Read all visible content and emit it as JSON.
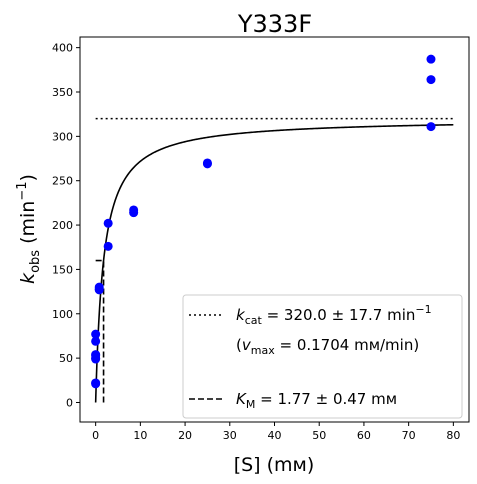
{
  "chart_data": {
    "type": "scatter",
    "title": "Y333F",
    "xlabel": "[S] (mм)",
    "ylabel_parts": {
      "main": "k",
      "sub": "obs",
      "unit_open": " (min",
      "sup": "−1",
      "unit_close": ")"
    },
    "xlim": [
      -3.5,
      83.5
    ],
    "ylim": [
      -22,
      412
    ],
    "xticks": [
      0,
      10,
      20,
      30,
      40,
      50,
      60,
      70,
      80
    ],
    "yticks": [
      0,
      50,
      100,
      150,
      200,
      250,
      300,
      350,
      400
    ],
    "grid": false,
    "legend_position": "lower-right",
    "colors": {
      "points": "#0000ff",
      "lines": "#000000"
    },
    "points": {
      "x": [
        0,
        0,
        0,
        0,
        0,
        0,
        0,
        0,
        0.8,
        0.8,
        0.8,
        2.8,
        2.8,
        8.5,
        8.5,
        25,
        25,
        75,
        75,
        75
      ],
      "y": [
        21,
        22,
        49,
        50,
        53,
        54,
        69,
        77,
        127,
        128,
        130,
        176,
        202,
        214,
        217,
        269,
        270,
        311,
        364,
        387
      ]
    },
    "fit_curve": {
      "kcat": 320.0,
      "km": 1.77,
      "x_range": [
        0,
        80
      ]
    },
    "kcat_line": {
      "y": 320.0,
      "x_range": [
        0,
        80
      ]
    },
    "km_lines": {
      "x": 1.77,
      "y_half": 160,
      "x_start": 0
    },
    "legend": {
      "kcat": {
        "symbol": "k",
        "sub": "cat",
        "rest": " = 320.0 ± 17.7 min",
        "sup": "−1"
      },
      "vmax": {
        "open": "(",
        "symbol": "v",
        "sub": "max",
        "rest": " = 0.1704 mм/min)"
      },
      "km": {
        "symbol": "K",
        "sub": "M",
        "rest": " = 1.77 ± 0.47 mм"
      }
    }
  }
}
